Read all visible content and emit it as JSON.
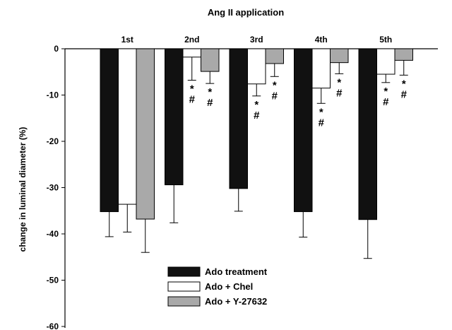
{
  "chart_data": {
    "type": "bar",
    "title": "Ang II application",
    "ylabel": "change in luminal diameter (%)",
    "ylim": [
      -60,
      0
    ],
    "yticks": [
      0,
      -10,
      -20,
      -30,
      -40,
      -50,
      -60
    ],
    "categories": [
      "1st",
      "2nd",
      "3rd",
      "4th",
      "5th"
    ],
    "series": [
      {
        "name": "Ado treatment",
        "color": "#111111",
        "values": [
          -35.2,
          -29.4,
          -30.2,
          -35.2,
          -36.9
        ],
        "errors": [
          5.4,
          8.2,
          4.9,
          5.5,
          8.4
        ]
      },
      {
        "name": "Ado + Chel",
        "color": "#ffffff",
        "values": [
          -33.6,
          -1.8,
          -7.6,
          -8.5,
          -5.5
        ],
        "errors": [
          6.0,
          5.0,
          2.6,
          3.3,
          1.8
        ]
      },
      {
        "name": "Ado + Y-27632",
        "color": "#a9a9a9",
        "values": [
          -36.8,
          -4.9,
          -3.2,
          -3.0,
          -2.5
        ],
        "errors": [
          7.2,
          2.6,
          2.8,
          2.4,
          3.2
        ]
      }
    ],
    "annotations": [
      {
        "category": "2nd",
        "series": "Ado + Chel",
        "marks": [
          "*",
          "#"
        ]
      },
      {
        "category": "2nd",
        "series": "Ado + Y-27632",
        "marks": [
          "*",
          "#"
        ]
      },
      {
        "category": "3rd",
        "series": "Ado + Chel",
        "marks": [
          "*",
          "#"
        ]
      },
      {
        "category": "3rd",
        "series": "Ado + Y-27632",
        "marks": [
          "*",
          "#"
        ]
      },
      {
        "category": "4th",
        "series": "Ado + Chel",
        "marks": [
          "*",
          "#"
        ]
      },
      {
        "category": "4th",
        "series": "Ado + Y-27632",
        "marks": [
          "*",
          "#"
        ]
      },
      {
        "category": "5th",
        "series": "Ado + Chel",
        "marks": [
          "*",
          "#"
        ]
      },
      {
        "category": "5th",
        "series": "Ado + Y-27632",
        "marks": [
          "*",
          "#"
        ]
      }
    ],
    "legend_position": "bottom-center",
    "grid": false
  }
}
